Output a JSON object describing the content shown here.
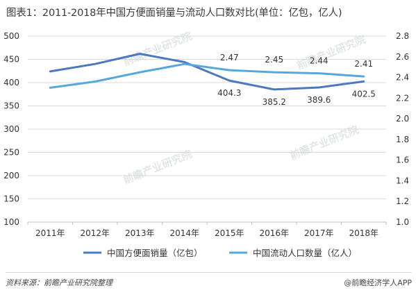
{
  "title": "图表1：2011-2018年中国方便面销量与流动人口数对比(单位：亿包，亿人)",
  "footer": {
    "source": "资料来源：前瞻产业研究院整理",
    "brand": "@前瞻经济学人APP"
  },
  "watermark": "前瞻产业研究院",
  "colors": {
    "noodles": "#4a78c2",
    "population": "#56a8dc",
    "grid": "#d9d9d9",
    "axis": "#bfbfbf"
  },
  "chart_data": {
    "type": "line",
    "categories": [
      "2011年",
      "2012年",
      "2013年",
      "2014年",
      "2015年",
      "2016年",
      "2017年",
      "2018年"
    ],
    "series": [
      {
        "name": "中国方便面销量（亿包）",
        "axis": "left",
        "values": [
          424,
          440,
          462,
          444,
          404.3,
          385.2,
          389.6,
          402.5
        ],
        "labels": [
          "",
          "",
          "",
          "",
          "404.3",
          "385.2",
          "389.6",
          "402.5"
        ]
      },
      {
        "name": "中国流动人口数量（亿人）",
        "axis": "right",
        "values": [
          2.3,
          2.36,
          2.45,
          2.53,
          2.47,
          2.45,
          2.44,
          2.41
        ],
        "labels": [
          "",
          "",
          "",
          "",
          "2.47",
          "2.45",
          "2.44",
          "2.41"
        ]
      }
    ],
    "y_left": {
      "min": 100,
      "max": 500,
      "ticks": [
        100,
        150,
        200,
        250,
        300,
        350,
        400,
        450,
        500
      ]
    },
    "y_right": {
      "min": 1.0,
      "max": 2.8,
      "ticks": [
        "1.0",
        "1.2",
        "1.4",
        "1.6",
        "1.8",
        "2.0",
        "2.2",
        "2.4",
        "2.6",
        "2.8"
      ]
    },
    "grid": true,
    "legend_position": "bottom"
  }
}
